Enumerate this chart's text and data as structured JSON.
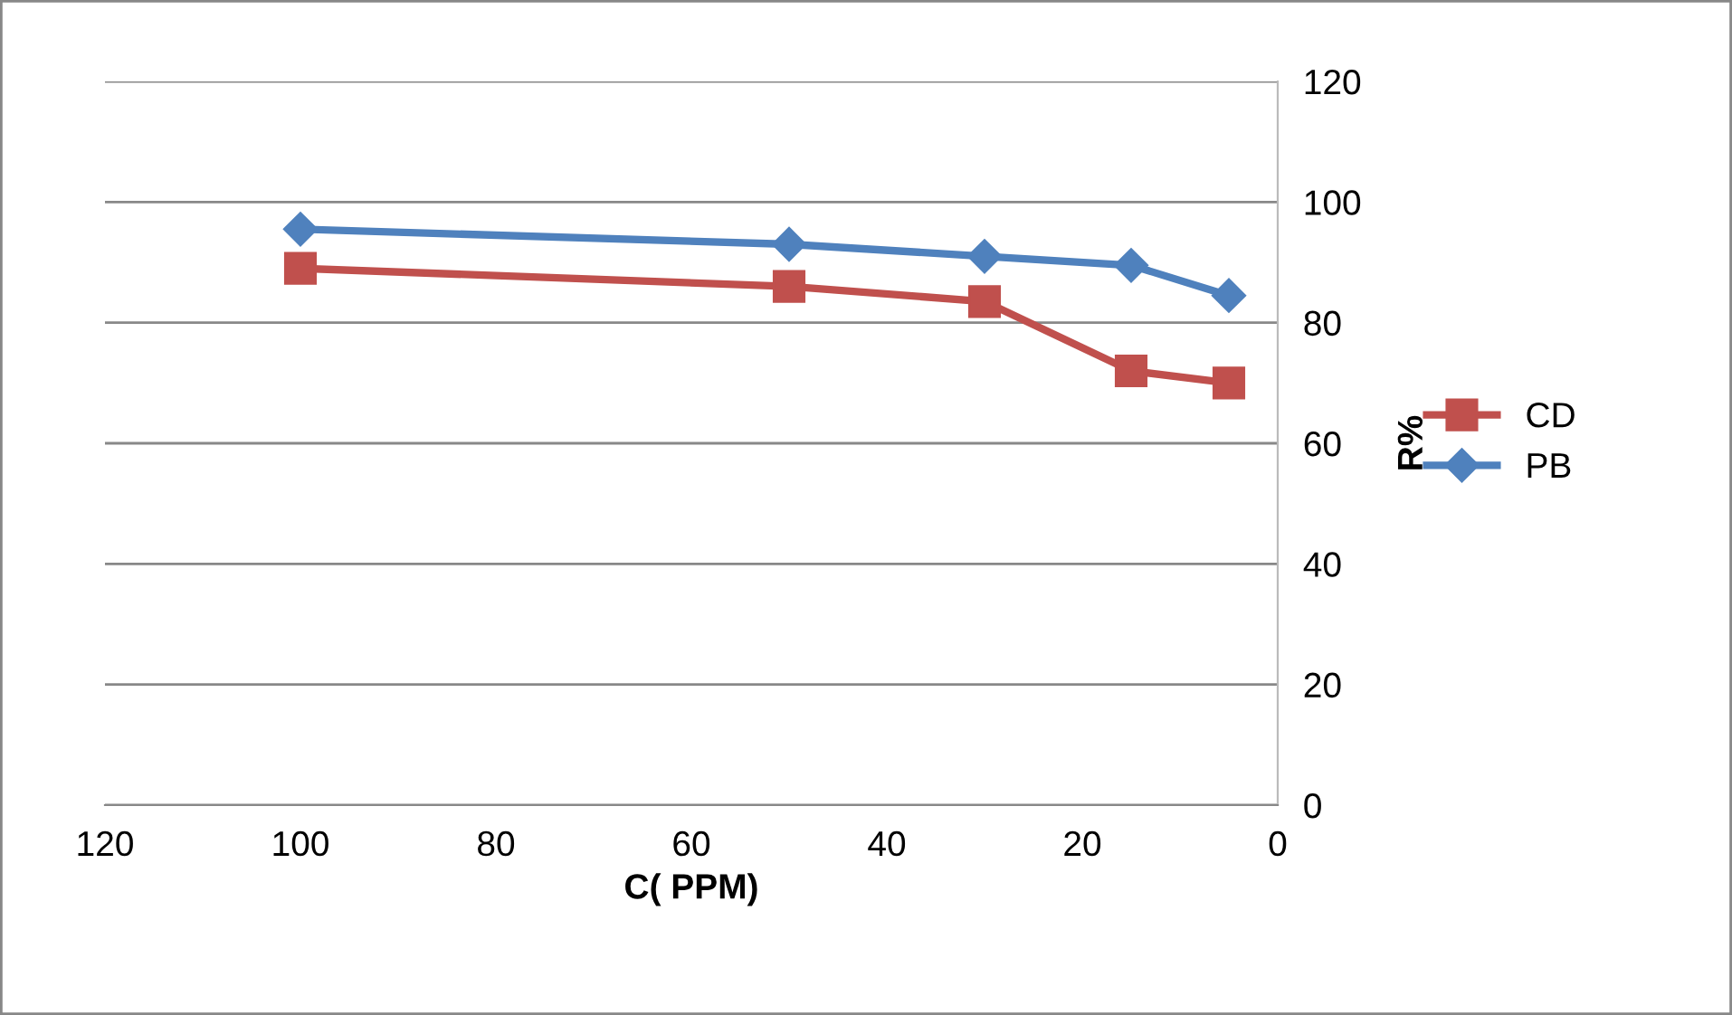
{
  "chart_data": {
    "type": "line",
    "xlabel": "C( PPM)",
    "ylabel": "R%",
    "x": [
      100,
      50,
      30,
      15,
      5
    ],
    "series": [
      {
        "name": "CD",
        "color": "#c0504d",
        "marker": "square",
        "values": [
          89,
          86,
          83.5,
          72,
          70
        ]
      },
      {
        "name": "PB",
        "color": "#4f81bd",
        "marker": "diamond",
        "values": [
          95.5,
          93,
          91,
          89.5,
          84.5
        ]
      }
    ],
    "xlim": [
      120,
      0
    ],
    "xticks": [
      120,
      100,
      80,
      60,
      40,
      20,
      0
    ],
    "ylim": [
      0,
      120
    ],
    "yticks": [
      0,
      20,
      40,
      60,
      80,
      100,
      120
    ],
    "grid": "y",
    "legend": "right",
    "line_style": "solid"
  }
}
